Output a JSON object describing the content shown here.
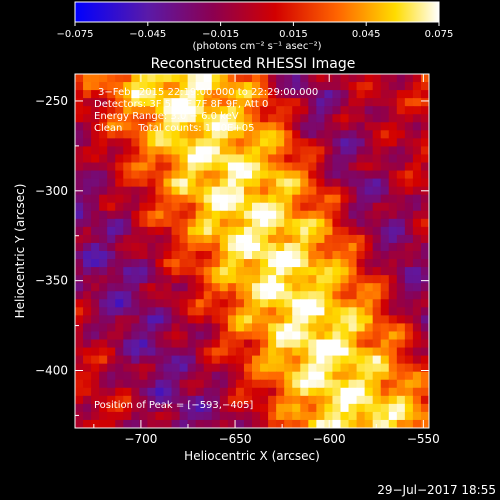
{
  "chart_data": {
    "type": "heatmap",
    "title": "Reconstructed RHESSI Image",
    "xlabel": "Heliocentric X (arcsec)",
    "ylabel": "Heliocentric Y (arcsec)",
    "xlim": [
      -735,
      -547
    ],
    "ylim": [
      -432,
      -235
    ],
    "x_ticks": [
      -700,
      -650,
      -600,
      -550
    ],
    "y_ticks": [
      -250,
      -300,
      -350,
      -400
    ],
    "x_tick_labels": [
      "−700",
      "−650",
      "−600",
      "−550"
    ],
    "y_tick_labels": [
      "−250",
      "−300",
      "−350",
      "−400"
    ],
    "colorbar": {
      "range": [
        -0.075,
        0.075
      ],
      "ticks": [
        -0.075,
        -0.045,
        -0.015,
        0.015,
        0.045,
        0.075
      ],
      "tick_labels": [
        "−0.075",
        "−0.045",
        "−0.015",
        "0.015",
        "0.045",
        "0.075"
      ],
      "unit_label": "(photons cm⁻² s⁻¹ asec⁻²)"
    },
    "annotations": {
      "time": "3−Feb−2015 22:19:00.000 to 22:29:00.000",
      "detectors": "Detectors: 3F 5F 6F 7F 8F 9F, Att 0",
      "energy": "Energy Range: 3.0 − 6.0 keV",
      "clean": "Clean     Total counts: 1.20E+05",
      "peak": "Position of Peak = [−593,−405]"
    },
    "peak_position": [
      -593,
      -405
    ],
    "colormap": [
      "#0000ff",
      "#5a1aa8",
      "#8c0050",
      "#d20000",
      "#ff6400",
      "#ffdc00",
      "#ffffff"
    ]
  },
  "footer": {
    "date": "29−Jul−2017 18:55"
  }
}
